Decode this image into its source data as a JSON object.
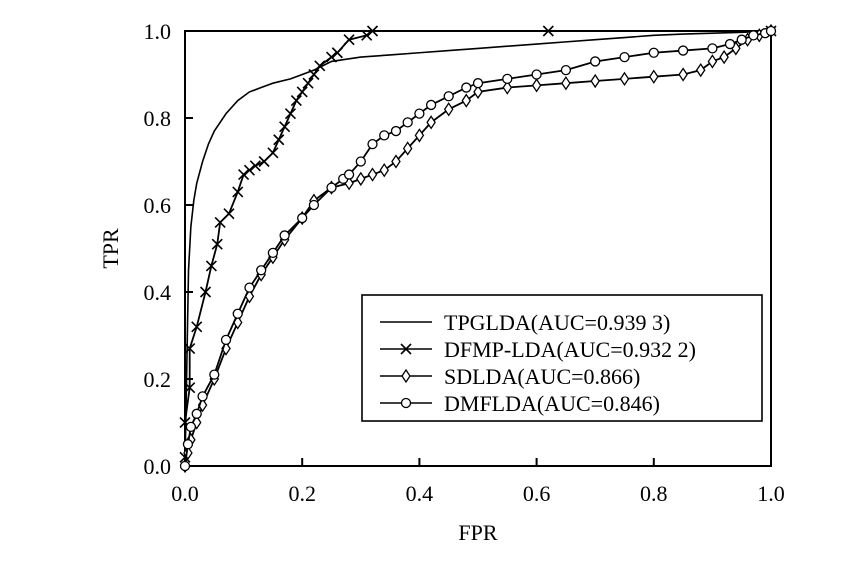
{
  "chart_data": {
    "type": "line",
    "xlabel": "FPR",
    "ylabel": "TPR",
    "xlim": [
      0,
      1
    ],
    "ylim": [
      0,
      1
    ],
    "xticks": [
      "0.0",
      "0.2",
      "0.4",
      "0.6",
      "0.8",
      "1.0"
    ],
    "yticks": [
      "0.0",
      "0.2",
      "0.4",
      "0.6",
      "0.8",
      "1.0"
    ],
    "grid": false,
    "legend_position": "bottom-right",
    "series": [
      {
        "name": "TPGLDA(AUC=0.939 3)",
        "marker": "none",
        "x": [
          0,
          0.002,
          0.004,
          0.006,
          0.01,
          0.015,
          0.02,
          0.03,
          0.04,
          0.05,
          0.07,
          0.09,
          0.11,
          0.13,
          0.15,
          0.18,
          0.2,
          0.22,
          0.25,
          0.3,
          0.35,
          0.4,
          0.45,
          0.5,
          0.55,
          0.6,
          0.65,
          0.7,
          0.75,
          0.8,
          0.85,
          0.9,
          0.95,
          0.98,
          1.0
        ],
        "y": [
          0,
          0.15,
          0.3,
          0.45,
          0.55,
          0.61,
          0.65,
          0.7,
          0.74,
          0.77,
          0.81,
          0.84,
          0.86,
          0.87,
          0.88,
          0.89,
          0.9,
          0.91,
          0.93,
          0.94,
          0.945,
          0.95,
          0.955,
          0.96,
          0.965,
          0.97,
          0.975,
          0.98,
          0.985,
          0.99,
          0.993,
          0.995,
          0.997,
          0.999,
          1.0
        ]
      },
      {
        "name": "DFMP-LDA(AUC=0.932 2)",
        "marker": "x",
        "x": [
          0,
          0,
          0.008,
          0.008,
          0.02,
          0.035,
          0.045,
          0.055,
          0.06,
          0.075,
          0.09,
          0.1,
          0.11,
          0.12,
          0.135,
          0.15,
          0.16,
          0.17,
          0.18,
          0.19,
          0.2,
          0.21,
          0.22,
          0.23,
          0.25,
          0.26,
          0.28,
          0.31,
          0.32,
          0.62,
          1.0
        ],
        "y": [
          0.02,
          0.1,
          0.18,
          0.27,
          0.32,
          0.4,
          0.46,
          0.51,
          0.56,
          0.58,
          0.63,
          0.67,
          0.68,
          0.69,
          0.7,
          0.72,
          0.75,
          0.78,
          0.81,
          0.84,
          0.86,
          0.88,
          0.9,
          0.92,
          0.94,
          0.95,
          0.98,
          0.99,
          1.0,
          1.0,
          1.0
        ]
      },
      {
        "name": "SDLDA(AUC=0.866)",
        "marker": "diamond",
        "x": [
          0,
          0.005,
          0.01,
          0.02,
          0.03,
          0.05,
          0.07,
          0.09,
          0.11,
          0.13,
          0.15,
          0.17,
          0.2,
          0.22,
          0.25,
          0.28,
          0.3,
          0.32,
          0.34,
          0.36,
          0.38,
          0.4,
          0.42,
          0.45,
          0.48,
          0.5,
          0.55,
          0.6,
          0.65,
          0.7,
          0.75,
          0.8,
          0.85,
          0.88,
          0.9,
          0.92,
          0.94,
          0.96,
          0.98,
          1.0
        ],
        "y": [
          0,
          0.03,
          0.06,
          0.1,
          0.14,
          0.2,
          0.27,
          0.33,
          0.39,
          0.44,
          0.48,
          0.52,
          0.57,
          0.61,
          0.64,
          0.65,
          0.66,
          0.67,
          0.68,
          0.7,
          0.73,
          0.76,
          0.79,
          0.82,
          0.84,
          0.86,
          0.87,
          0.875,
          0.88,
          0.885,
          0.89,
          0.895,
          0.9,
          0.91,
          0.93,
          0.94,
          0.96,
          0.98,
          0.99,
          1.0
        ]
      },
      {
        "name": "DMFLDA(AUC=0.846)",
        "marker": "circle",
        "x": [
          0,
          0.005,
          0.01,
          0.02,
          0.03,
          0.05,
          0.07,
          0.09,
          0.11,
          0.13,
          0.15,
          0.17,
          0.2,
          0.22,
          0.25,
          0.27,
          0.28,
          0.3,
          0.32,
          0.34,
          0.36,
          0.38,
          0.4,
          0.42,
          0.45,
          0.48,
          0.5,
          0.55,
          0.6,
          0.65,
          0.7,
          0.75,
          0.8,
          0.85,
          0.9,
          0.93,
          0.95,
          0.97,
          0.99,
          1.0
        ],
        "y": [
          0,
          0.05,
          0.09,
          0.12,
          0.16,
          0.21,
          0.29,
          0.35,
          0.41,
          0.45,
          0.49,
          0.53,
          0.57,
          0.6,
          0.64,
          0.66,
          0.67,
          0.7,
          0.74,
          0.76,
          0.77,
          0.79,
          0.81,
          0.83,
          0.85,
          0.87,
          0.88,
          0.89,
          0.9,
          0.91,
          0.93,
          0.94,
          0.95,
          0.955,
          0.96,
          0.97,
          0.98,
          0.99,
          0.995,
          1.0
        ]
      }
    ]
  }
}
